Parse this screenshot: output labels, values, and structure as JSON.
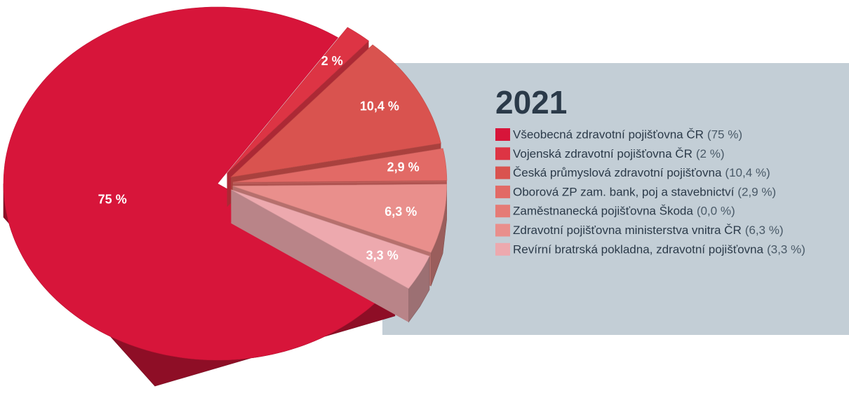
{
  "chart_data": {
    "type": "pie3d",
    "title": "2021",
    "categories": [
      "Všeobecná zdravotní pojišťovna ČR",
      "Vojenská zdravotní pojišťovna ČR",
      "Česká průmyslová zdravotní pojišťovna",
      "Oborová ZP zam. bank, poj a stavebnictví",
      "Zaměstnanecká pojišťovna Škoda",
      "Zdravotní pojišťovna ministerstva vnitra ČR",
      "Revírní bratrská pokladna, zdravotní pojišťovna"
    ],
    "values": [
      75,
      2,
      10.4,
      2.9,
      0.0,
      6.3,
      3.3
    ],
    "value_labels": [
      "75 %",
      "2 %",
      "10,4 %",
      "2,9 %",
      null,
      "6,3 %",
      "3,3 %"
    ],
    "legend_value_labels": [
      "(75 %)",
      "(2 %)",
      "(10,4 %)",
      "(2,9 %)",
      "(0,0 %)",
      "(6,3 %)",
      "(3,3 %)"
    ],
    "colors": [
      "#d7153a",
      "#dd3444",
      "#d9534f",
      "#e26a66",
      "#e57b76",
      "#e98f8c",
      "#eda9ae"
    ],
    "legend": "right"
  }
}
